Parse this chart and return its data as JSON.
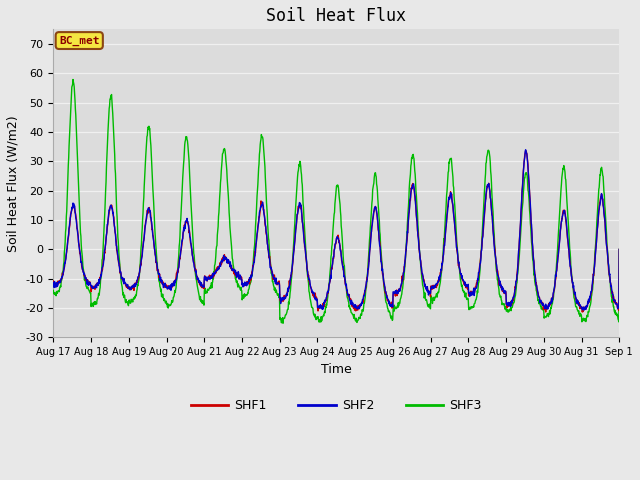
{
  "title": "Soil Heat Flux",
  "xlabel": "Time",
  "ylabel": "Soil Heat Flux (W/m2)",
  "ylim": [
    -30,
    75
  ],
  "yticks": [
    -30,
    -20,
    -10,
    0,
    10,
    20,
    30,
    40,
    50,
    60,
    70
  ],
  "xtick_labels": [
    "Aug 17",
    "Aug 18",
    "Aug 19",
    "Aug 20",
    "Aug 21",
    "Aug 22",
    "Aug 23",
    "Aug 24",
    "Aug 25",
    "Aug 26",
    "Aug 27",
    "Aug 28",
    "Aug 29",
    "Aug 30",
    "Aug 31",
    "Sep 1"
  ],
  "site_label": "BC_met",
  "fig_bg_color": "#e8e8e8",
  "plot_bg_color": "#dcdcdc",
  "grid_color": "#f0f0f0",
  "shf1_color": "#cc0000",
  "shf2_color": "#0000cc",
  "shf3_color": "#00bb00",
  "n_days": 15,
  "n_points_per_day": 96,
  "day_peaks_shf3": [
    63,
    60,
    49,
    46,
    40,
    45,
    39,
    31,
    35,
    40,
    38,
    42,
    34,
    37,
    37
  ],
  "day_peaks_shf12": [
    20,
    20,
    19,
    15,
    1,
    20,
    22,
    12,
    22,
    28,
    24,
    28,
    41,
    21,
    26
  ],
  "day_troughs_shf3": [
    -15,
    -19,
    -18,
    -19,
    -14,
    -16,
    -24,
    -24,
    -24,
    -20,
    -17,
    -20,
    -21,
    -23,
    -24
  ],
  "day_troughs_shf12": [
    -12,
    -13,
    -13,
    -13,
    -10,
    -12,
    -17,
    -20,
    -20,
    -15,
    -13,
    -15,
    -19,
    -20,
    -20
  ]
}
